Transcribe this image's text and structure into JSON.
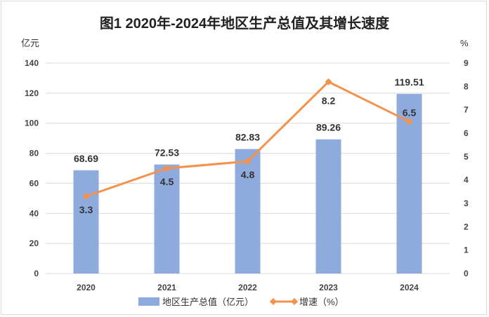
{
  "chart_data": {
    "type": "bar+line",
    "title": "图1  2020年-2024年地区生产总值及其增长速度",
    "categories": [
      "2020",
      "2021",
      "2022",
      "2023",
      "2024"
    ],
    "series": [
      {
        "name": "地区生产总值（亿元）",
        "type": "bar",
        "axis": "left",
        "values": [
          68.69,
          72.53,
          82.83,
          89.26,
          119.51
        ],
        "color": "#8faadc"
      },
      {
        "name": "增速（%）",
        "type": "line",
        "axis": "right",
        "values": [
          3.3,
          4.5,
          4.8,
          8.2,
          6.5
        ],
        "color": "#f4914a"
      }
    ],
    "ylabel_left": "亿元",
    "ylabel_right": "%",
    "ylim_left": [
      0,
      140
    ],
    "yticks_left": [
      0,
      20,
      40,
      60,
      80,
      100,
      120,
      140
    ],
    "ylim_right": [
      0,
      9
    ],
    "yticks_right": [
      0,
      1,
      2,
      3,
      4,
      5,
      6,
      7,
      8,
      9
    ],
    "grid": true,
    "legend": "bottom"
  }
}
